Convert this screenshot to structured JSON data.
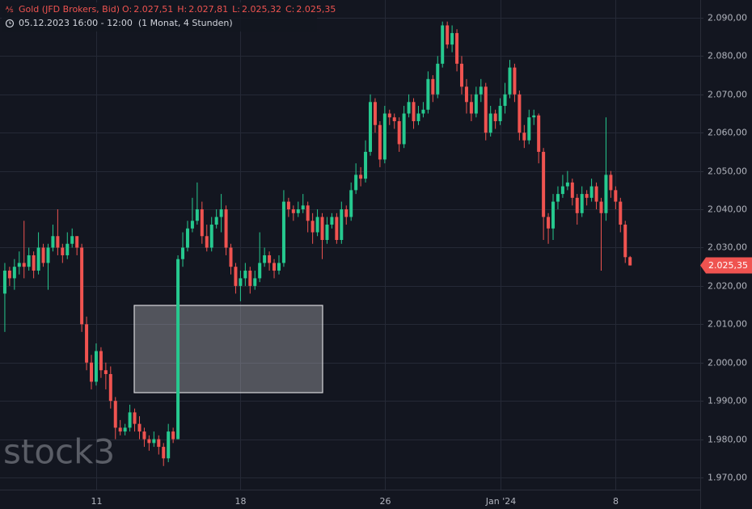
{
  "chart_data": {
    "type": "candlestick",
    "header": {
      "symbol": "Gold (JFD Brokers, Bid)",
      "ohlc": [
        {
          "key": "O:",
          "value": "2.027,51"
        },
        {
          "key": "H:",
          "value": "2.027,81"
        },
        {
          "key": "L:",
          "value": "2.025,32"
        },
        {
          "key": "C:",
          "value": "2.025,35"
        }
      ],
      "range": "05.12.2023 16:00 - 12:00",
      "interval": "(1 Monat, 4 Stunden)"
    },
    "watermark": "stock3",
    "categories": [
      null,
      null,
      null,
      null,
      null,
      null,
      null,
      null,
      null,
      null,
      null,
      null,
      null,
      null,
      null,
      null,
      null,
      null,
      null,
      "11",
      null,
      null,
      null,
      null,
      null,
      null,
      null,
      null,
      null,
      null,
      null,
      null,
      null,
      null,
      null,
      null,
      null,
      null,
      null,
      null,
      null,
      null,
      null,
      null,
      null,
      null,
      null,
      null,
      null,
      "18",
      null,
      null,
      null,
      null,
      null,
      null,
      null,
      null,
      null,
      null,
      null,
      null,
      null,
      null,
      null,
      null,
      null,
      null,
      null,
      null,
      null,
      null,
      null,
      null,
      null,
      null,
      null,
      null,
      null,
      "26",
      null,
      null,
      null,
      null,
      null,
      null,
      null,
      null,
      null,
      null,
      null,
      null,
      null,
      null,
      null,
      null,
      null,
      null,
      null,
      null,
      null,
      null,
      null,
      "Jan '24",
      null,
      null,
      null,
      null,
      null,
      null,
      null,
      null,
      null,
      null,
      null,
      null,
      null,
      null,
      null,
      null,
      null,
      null,
      null,
      null,
      null,
      null,
      null,
      "8",
      null,
      null,
      null
    ],
    "open": [
      2018,
      2024,
      2022,
      2025,
      2026,
      2025,
      2028,
      2024,
      2030,
      2026,
      2030,
      2033,
      2030,
      2028,
      2031,
      2033,
      2030,
      2010,
      2000,
      1995,
      2003,
      1998,
      1997,
      1990,
      1983,
      1982,
      1983,
      1987,
      1984,
      1982,
      1980,
      1979,
      1980,
      1978,
      1975,
      1982,
      1980,
      2027,
      2030,
      2035,
      2037,
      2040,
      2033,
      2030,
      2036,
      2038,
      2040,
      2030,
      2025,
      2020,
      2022,
      2024,
      2020,
      2022,
      2026,
      2028,
      2026,
      2024,
      2026,
      2042,
      2040,
      2039,
      2040,
      2041,
      2037,
      2034,
      2038,
      2032,
      2036,
      2038,
      2032,
      2040,
      2038,
      2045,
      2049,
      2048,
      2055,
      2068,
      2062,
      2053,
      2065,
      2064,
      2063,
      2057,
      2065,
      2068,
      2063,
      2065,
      2066,
      2074,
      2070,
      2078,
      2088,
      2083,
      2086,
      2078,
      2072,
      2068,
      2065,
      2070,
      2072,
      2060,
      2065,
      2063,
      2067,
      2070,
      2077,
      2070,
      2060,
      2058,
      2064,
      2064.5,
      2055,
      2038,
      2035,
      2042,
      2044,
      2046,
      2047,
      2043,
      2039,
      2044,
      2043,
      2046,
      2042,
      2039,
      2049,
      2045,
      2042,
      2036,
      2027.51
    ],
    "high": [
      2026,
      2025,
      2027,
      2029,
      2037,
      2030,
      2029,
      2034,
      2031,
      2031,
      2036,
      2040,
      2031,
      2034,
      2035,
      2033,
      2031,
      2012,
      2002,
      2005,
      2004,
      2000,
      1999,
      1991,
      1985,
      1984,
      1989,
      1988,
      1986,
      1983,
      1981,
      1982,
      1981,
      1979,
      1984,
      1983,
      2028,
      2034,
      2037,
      2043,
      2047,
      2042,
      2036,
      2038,
      2040,
      2044,
      2041,
      2031,
      2026,
      2024,
      2026,
      2025,
      2024,
      2034,
      2030,
      2029,
      2027,
      2028,
      2045,
      2043,
      2041,
      2042,
      2044,
      2042,
      2039,
      2040,
      2039,
      2038,
      2039,
      2039,
      2042,
      2041,
      2047,
      2052,
      2051,
      2058,
      2070,
      2069,
      2063,
      2067,
      2066,
      2065,
      2064,
      2067,
      2070,
      2069,
      2067,
      2068,
      2076,
      2075,
      2080,
      2089,
      2089,
      2088,
      2087,
      2080,
      2074,
      2070,
      2072,
      2074,
      2073,
      2067,
      2066,
      2069,
      2073,
      2079,
      2078,
      2071,
      2062,
      2066,
      2066,
      2065,
      2056,
      2039,
      2044,
      2046,
      2049,
      2050,
      2048,
      2044,
      2046,
      2045,
      2048,
      2047,
      2043,
      2064,
      2050,
      2046,
      2043,
      2037,
      2027.81
    ],
    "low": [
      2008,
      2020,
      2019,
      2023,
      2022,
      2024,
      2022,
      2023,
      2025,
      2019,
      2029,
      2028,
      2026,
      2027,
      2030,
      2028,
      2008,
      1998,
      1993,
      1994,
      1996,
      1993,
      1988,
      1980,
      1981,
      1981,
      1982,
      1982,
      1980,
      1978,
      1977,
      1978,
      1976,
      1973,
      1974,
      1979,
      1980,
      2025,
      2029,
      2034,
      2036,
      2031,
      2029,
      2029,
      2035,
      2034,
      2028,
      2023,
      2018,
      2016,
      2020,
      2018,
      2019,
      2021,
      2025,
      2024,
      2022,
      2023,
      2025,
      2038,
      2037,
      2038,
      2039,
      2034,
      2031,
      2033,
      2027,
      2031,
      2035,
      2031,
      2031,
      2036,
      2037,
      2044,
      2046,
      2047,
      2054,
      2060,
      2051,
      2052,
      2062,
      2061,
      2055,
      2056,
      2064,
      2061,
      2062,
      2064,
      2065,
      2068,
      2069,
      2077,
      2082,
      2081,
      2076,
      2070,
      2065,
      2063,
      2064,
      2068,
      2058,
      2059,
      2061,
      2062,
      2065,
      2069,
      2068,
      2058,
      2056,
      2057,
      2062,
      2052,
      2032,
      2031,
      2032,
      2040,
      2043,
      2045,
      2041,
      2036,
      2038,
      2041,
      2042,
      2040,
      2024,
      2037,
      2043,
      2040,
      2034,
      2026,
      2025.32
    ],
    "close": [
      2024,
      2022,
      2025,
      2026,
      2025,
      2028,
      2024,
      2030,
      2026,
      2030,
      2033,
      2030,
      2028,
      2031,
      2033,
      2030,
      2010,
      2000,
      1995,
      2003,
      1998,
      1997,
      1990,
      1983,
      1982,
      1983,
      1987,
      1984,
      1982,
      1980,
      1979,
      1980,
      1978,
      1975,
      1982,
      1980,
      2027,
      2030,
      2035,
      2037,
      2040,
      2033,
      2030,
      2036,
      2038,
      2040,
      2030,
      2025,
      2020,
      2022,
      2024,
      2020,
      2022,
      2026,
      2028,
      2026,
      2024,
      2026,
      2042,
      2040,
      2039,
      2040,
      2041,
      2037,
      2034,
      2038,
      2032,
      2036,
      2038,
      2032,
      2040,
      2038,
      2045,
      2049,
      2048,
      2055,
      2068,
      2062,
      2053,
      2065,
      2064,
      2063,
      2057,
      2065,
      2068,
      2063,
      2065,
      2066,
      2074,
      2070,
      2078,
      2088,
      2083,
      2086,
      2078,
      2072,
      2068,
      2065,
      2070,
      2072,
      2060,
      2065,
      2063,
      2067,
      2070,
      2077,
      2070,
      2060,
      2058,
      2064,
      2064.5,
      2055,
      2038,
      2035,
      2042,
      2044,
      2046,
      2047,
      2043,
      2039,
      2044,
      2043,
      2046,
      2042,
      2039,
      2049,
      2045,
      2042,
      2036,
      2027.51,
      2025.35
    ],
    "up_color": "#26c98f",
    "down_color": "#ef5350",
    "ylim": [
      1966.84,
      2094.63
    ],
    "yticks": [
      {
        "value": 1970,
        "label": "1.970,00"
      },
      {
        "value": 1980,
        "label": "1.980,00"
      },
      {
        "value": 1990,
        "label": "1.990,00"
      },
      {
        "value": 2000,
        "label": "2.000,00"
      },
      {
        "value": 2010,
        "label": "2.010,00"
      },
      {
        "value": 2020,
        "label": "2.020,00"
      },
      {
        "value": 2030,
        "label": "2.030,00"
      },
      {
        "value": 2040,
        "label": "2.040,00"
      },
      {
        "value": 2050,
        "label": "2.050,00"
      },
      {
        "value": 2060,
        "label": "2.060,00"
      },
      {
        "value": 2070,
        "label": "2.070,00"
      },
      {
        "value": 2080,
        "label": "2.080,00"
      },
      {
        "value": 2090,
        "label": "2.090,00"
      }
    ],
    "last_price": {
      "value": 2025.35,
      "label": "2.025,35"
    },
    "grid": true
  }
}
